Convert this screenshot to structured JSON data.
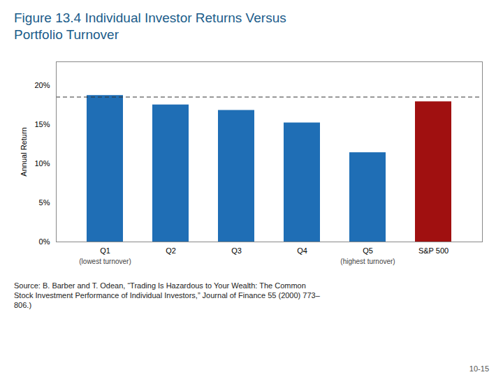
{
  "chart_data": {
    "type": "bar",
    "title": "Figure 13.4  Individual Investor Returns Versus\nPortfolio Turnover",
    "categories": [
      "Q1",
      "Q2",
      "Q3",
      "Q4",
      "Q5",
      "S&P 500"
    ],
    "values": [
      18.7,
      17.5,
      16.8,
      15.2,
      11.4,
      17.9
    ],
    "colors": [
      "#1f6eb5",
      "#1f6eb5",
      "#1f6eb5",
      "#1f6eb5",
      "#1f6eb5",
      "#a01010"
    ],
    "ylabel": "Annual Return",
    "ylim": [
      0,
      23
    ],
    "yticks": [
      {
        "value": 0,
        "label": "0%"
      },
      {
        "value": 5,
        "label": "5%"
      },
      {
        "value": 10,
        "label": "10%"
      },
      {
        "value": 15,
        "label": "15%"
      },
      {
        "value": 20,
        "label": "20%"
      }
    ],
    "reference_line": {
      "y": 18.5,
      "line_style": "dashed"
    },
    "annotations": [
      {
        "text": "(lowest turnover)",
        "category": "Q1"
      },
      {
        "text": "(highest turnover)",
        "category": "Q5"
      }
    ],
    "caption": "Source: B. Barber and T. Odean, “Trading Is Hazardous to Your Wealth: The Common\nStock Investment Performance of Individual Investors,” Journal of Finance 55 (2000) 773–\n806.)",
    "footer": "10-15",
    "grid": false
  }
}
